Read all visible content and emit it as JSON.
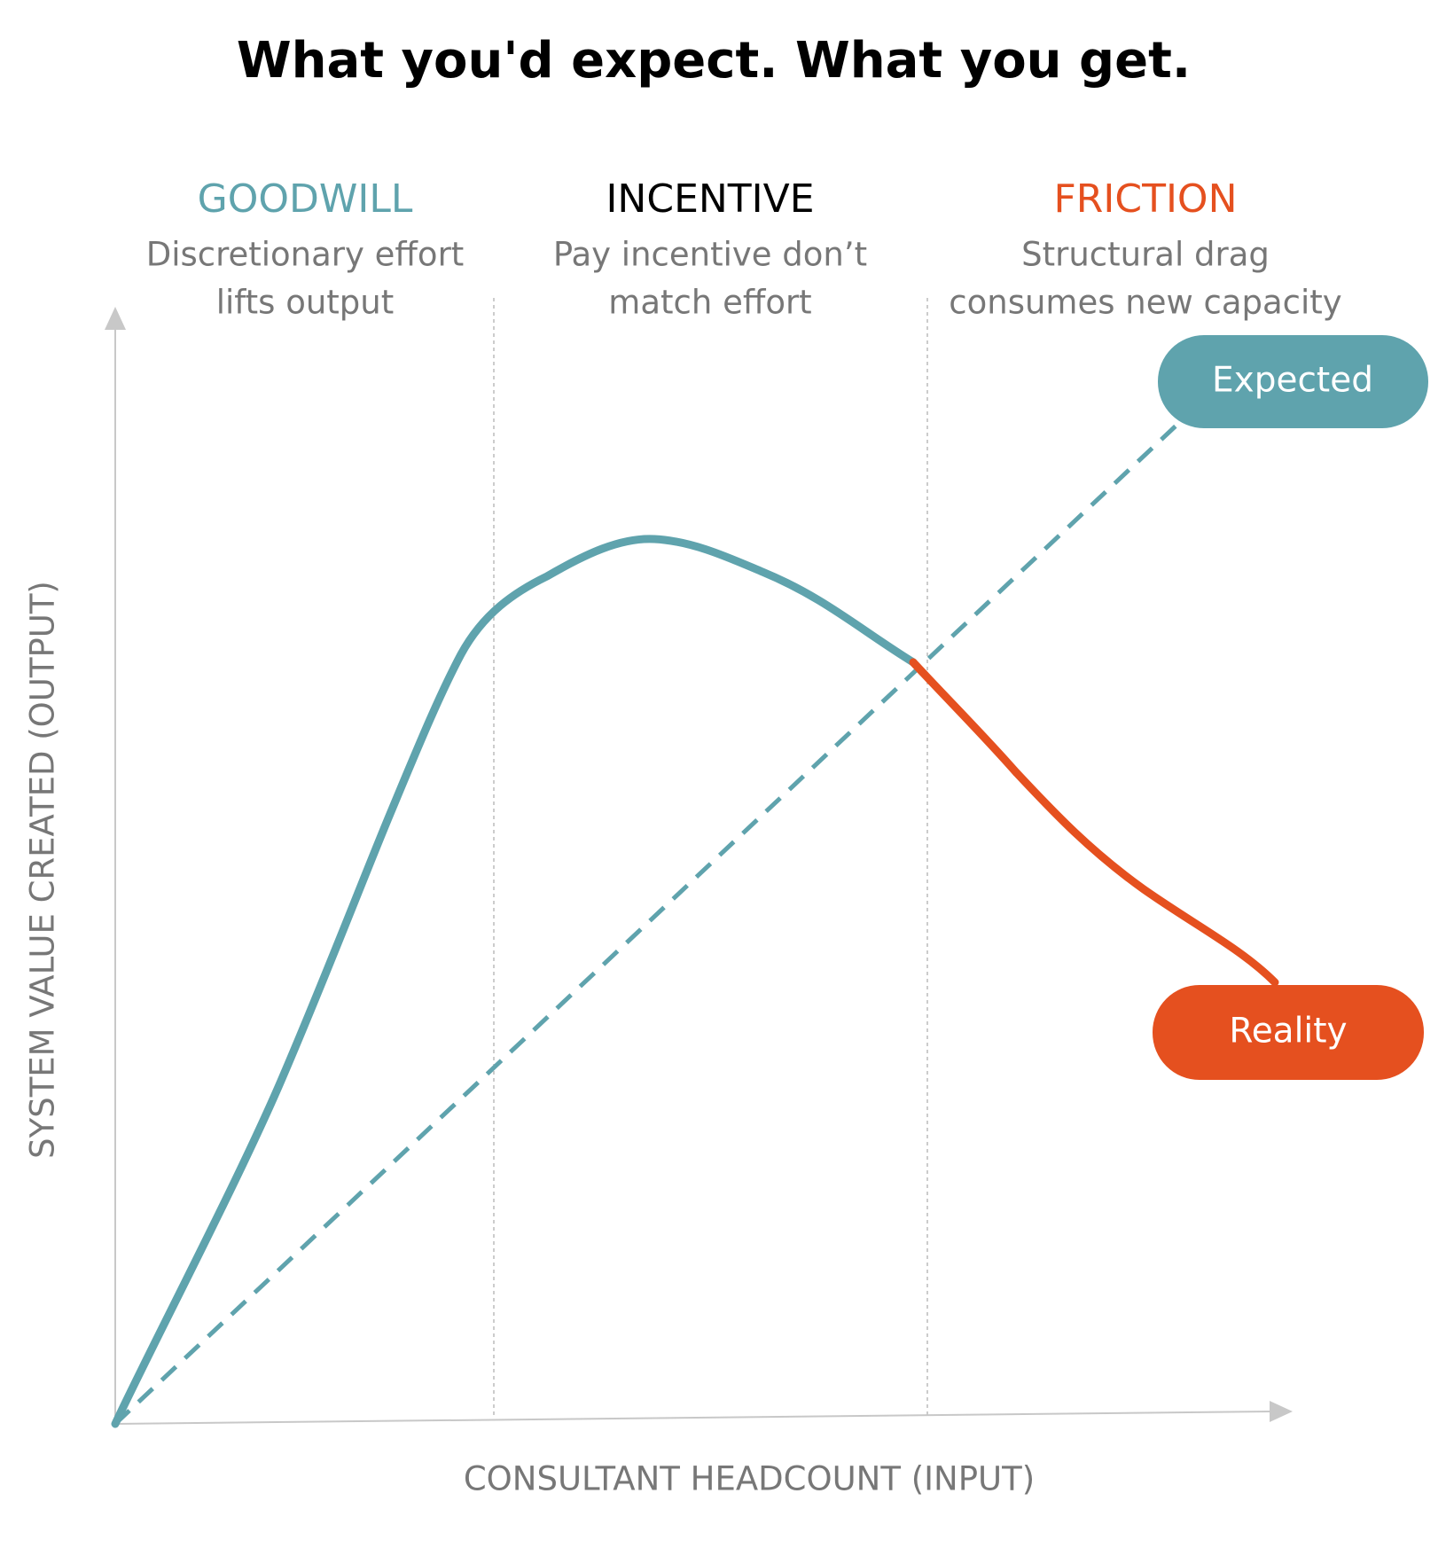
{
  "title": "What you'd expect. What you get.",
  "zones": [
    {
      "name": "GOODWILL",
      "lines": [
        "Discretionary effort",
        "lifts output"
      ]
    },
    {
      "name": "INCENTIVE",
      "lines": [
        "Pay incentive don’t",
        "match effort"
      ]
    },
    {
      "name": "FRICTION",
      "lines": [
        "Structural drag",
        "consumes new capacity"
      ]
    }
  ],
  "labels": {
    "expected": "Expected",
    "reality": "Reality"
  },
  "axes": {
    "y": "SYSTEM VALUE CREATED (OUTPUT)",
    "x": "CONSULTANT HEADCOUNT (INPUT)"
  }
}
